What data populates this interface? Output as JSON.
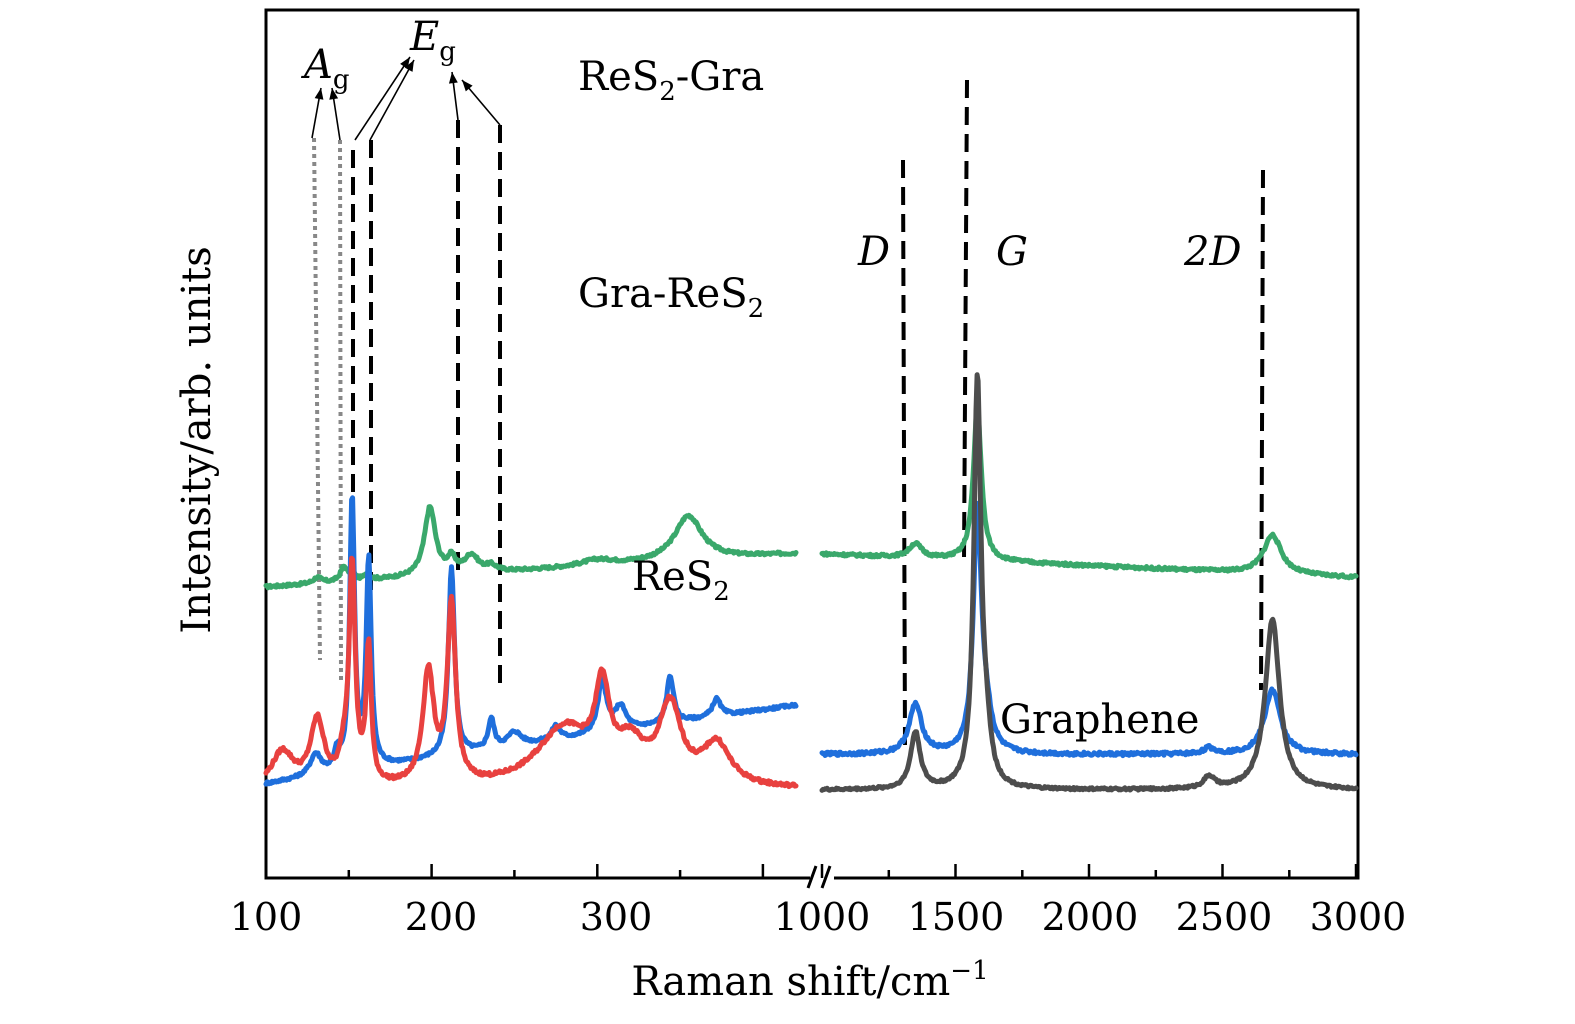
{
  "chart_data": {
    "type": "line",
    "xlabel": "Raman shift/cm",
    "xlabel_sup": "−1",
    "ylabel": "Intensity/arb. units",
    "x_ticks_left": [
      "100",
      "200",
      "300"
    ],
    "x_ticks_right": [
      "1000",
      "1500",
      "2000",
      "2500",
      "3000"
    ],
    "panels": [
      {
        "name": "left",
        "xlim": [
          100,
          420
        ]
      },
      {
        "name": "right",
        "xlim": [
          1000,
          3000
        ]
      }
    ],
    "series_labels": {
      "res2_gra": {
        "main": "ReS",
        "sub": "2",
        "tail": "-Gra"
      },
      "gra_res2": {
        "main": "Gra-ReS",
        "sub": "2",
        "tail": ""
      },
      "res2": {
        "main": "ReS",
        "sub": "2",
        "tail": ""
      },
      "graphene": {
        "main": "Graphene",
        "sub": "",
        "tail": ""
      }
    },
    "peak_labels": {
      "ag": {
        "main": "A",
        "sub": "g"
      },
      "eg": {
        "main": "E",
        "sub": "g"
      },
      "d": "D",
      "g": "G",
      "two_d": "2D"
    },
    "colors": {
      "res2_gra": "#3aa86b",
      "gra_res2": "#1f6fdc",
      "res2": "#e8413f",
      "graphene": "#4d4d4d"
    },
    "series": [
      {
        "key": "res2_gra",
        "panel": "left",
        "baseline": [
          1.72,
          2.0
        ],
        "noise": 0.012,
        "peaks": [
          [
            131,
            0.05,
            3
          ],
          [
            147,
            0.12,
            2.5
          ],
          [
            152,
            0.06,
            2
          ],
          [
            161,
            0.05,
            2
          ],
          [
            199,
            0.58,
            4
          ],
          [
            212,
            0.12,
            3
          ],
          [
            224,
            0.15,
            5
          ],
          [
            236,
            0.05,
            4
          ],
          [
            300,
            0.05,
            12
          ],
          [
            355,
            0.38,
            10
          ]
        ]
      },
      {
        "key": "gra_res2",
        "panel": "left",
        "baseline": [
          0.05,
          0.72
        ],
        "noise": 0.012,
        "peaks": [
          [
            130,
            0.18,
            4
          ],
          [
            143,
            0.15,
            2
          ],
          [
            152,
            2.3,
            1.8
          ],
          [
            162,
            1.75,
            1.8
          ],
          [
            212,
            1.6,
            2.2
          ],
          [
            236,
            0.25,
            2.2
          ],
          [
            250,
            0.12,
            5
          ],
          [
            275,
            0.12,
            3
          ],
          [
            303,
            0.45,
            3
          ],
          [
            314,
            0.2,
            4
          ],
          [
            344,
            0.4,
            2.5
          ],
          [
            372,
            0.15,
            3
          ]
        ]
      },
      {
        "key": "res2",
        "panel": "left",
        "baseline": [
          0,
          0
        ],
        "noise": 0.015,
        "peaks": [
          [
            110,
            0.3,
            8
          ],
          [
            131,
            0.55,
            5
          ],
          [
            147,
            0.2,
            3
          ],
          [
            152,
            1.85,
            2.2
          ],
          [
            162,
            1.15,
            1.8
          ],
          [
            198,
            0.95,
            4
          ],
          [
            212,
            1.5,
            3
          ],
          [
            280,
            0.5,
            20
          ],
          [
            303,
            0.7,
            5
          ],
          [
            320,
            0.3,
            10
          ],
          [
            344,
            0.65,
            8
          ],
          [
            372,
            0.35,
            10
          ]
        ]
      },
      {
        "key": "res2_gra",
        "panel": "right",
        "baseline": [
          2.0,
          1.8
        ],
        "noise": 0.012,
        "peaks": [
          [
            1350,
            0.12,
            28
          ],
          [
            1582,
            1.3,
            18
          ],
          [
            2687,
            0.33,
            40
          ]
        ]
      },
      {
        "key": "gra_res2",
        "panel": "right",
        "baseline": [
          0.3,
          0.3
        ],
        "noise": 0.015,
        "peaks": [
          [
            1350,
            0.42,
            28
          ],
          [
            1582,
            2.05,
            18
          ],
          [
            1615,
            0.25,
            25
          ],
          [
            2450,
            0.05,
            25
          ],
          [
            2687,
            0.55,
            35
          ]
        ]
      },
      {
        "key": "graphene",
        "panel": "right",
        "baseline": [
          0,
          0
        ],
        "noise": 0.01,
        "peaks": [
          [
            1350,
            0.48,
            22
          ],
          [
            1582,
            3.45,
            16
          ],
          [
            1615,
            0.35,
            20
          ],
          [
            2450,
            0.1,
            25
          ],
          [
            2687,
            1.45,
            32
          ]
        ]
      }
    ]
  }
}
